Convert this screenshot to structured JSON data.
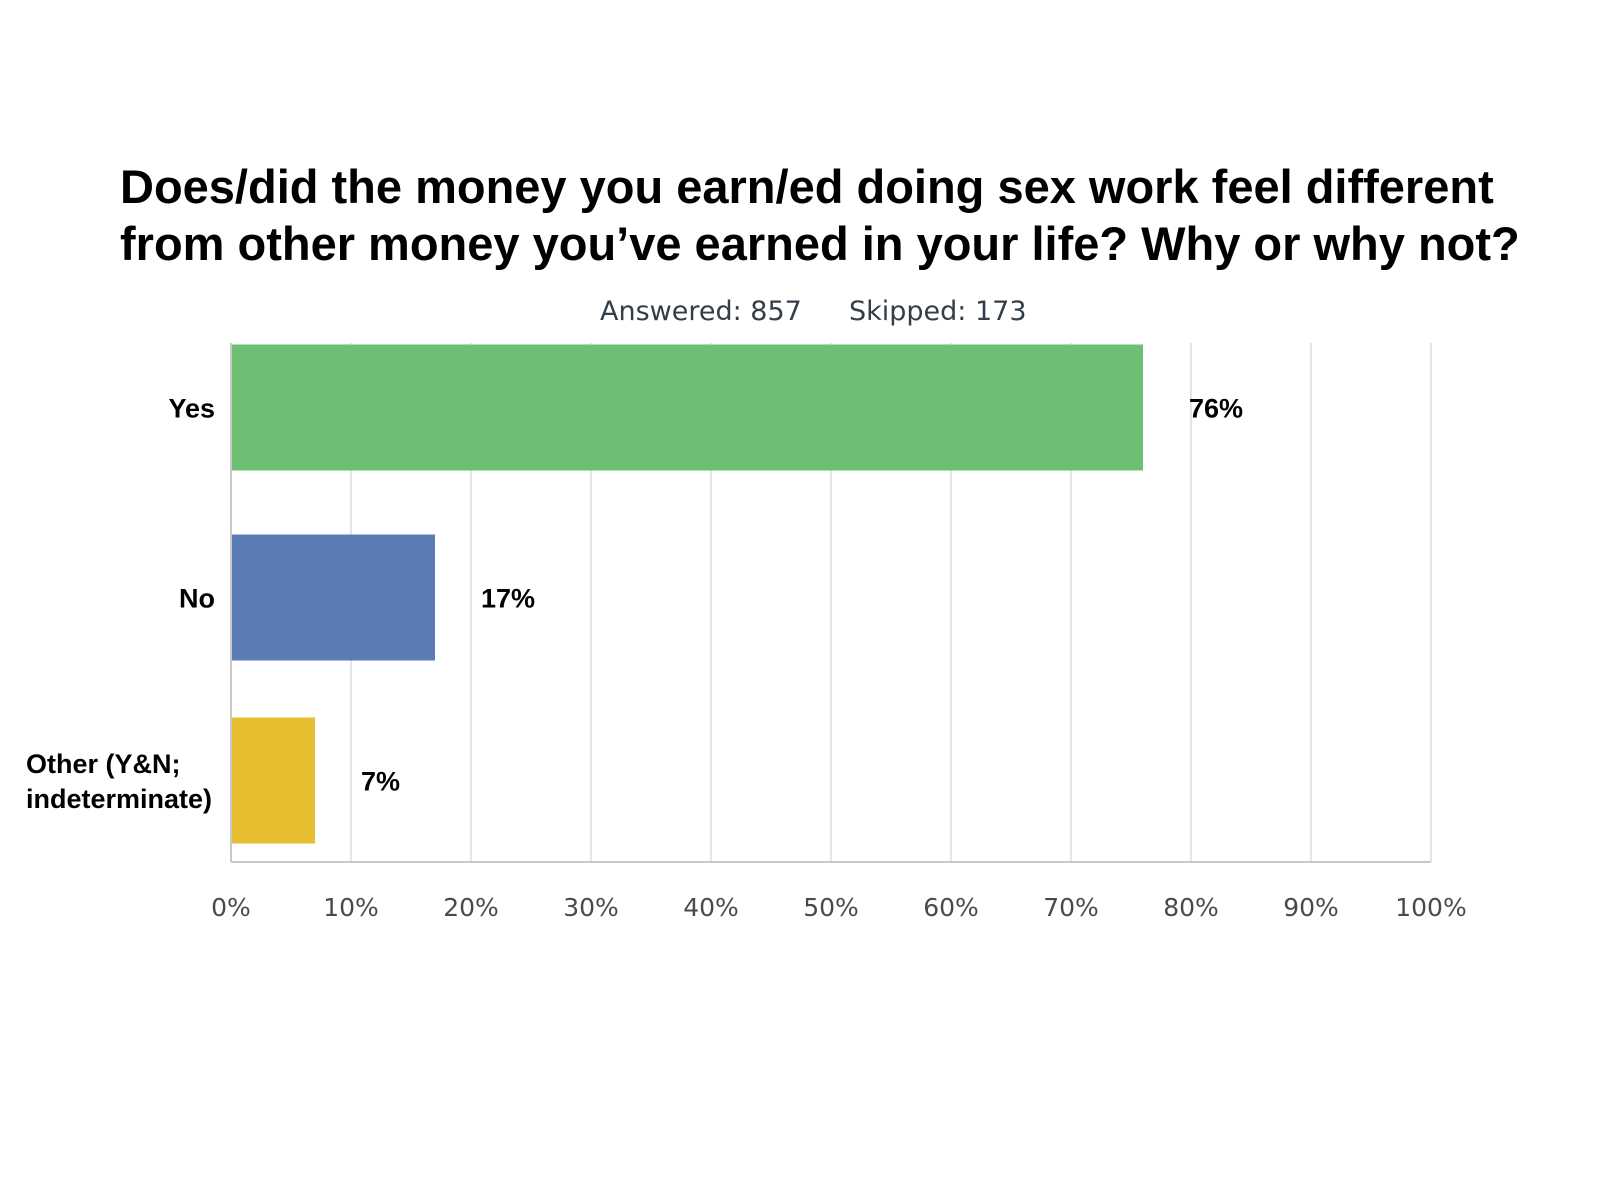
{
  "header": {
    "title_lines": [
      "Does/did the money you earn/ed doing sex work feel different",
      "from other money you’ve earned in your life? Why or why not?"
    ],
    "answered": "Answered: 857",
    "skipped": "Skipped: 173"
  },
  "chart_data": {
    "type": "bar",
    "orientation": "horizontal",
    "title": "Does/did the money you earn/ed doing sex work feel different from other money you’ve earned in your life? Why or why not?",
    "categories": [
      [
        "Yes"
      ],
      [
        "No"
      ],
      [
        "Other (Y&N;",
        "indeterminate)"
      ]
    ],
    "values": [
      76,
      17,
      7
    ],
    "value_labels": [
      "76%",
      "17%",
      "7%"
    ],
    "colors": [
      "#6cbf73",
      "#5b7db6",
      "#e7be2f"
    ],
    "xlim": [
      0,
      100
    ],
    "x_ticks": [
      "0%",
      "10%",
      "20%",
      "30%",
      "40%",
      "50%",
      "60%",
      "70%",
      "80%",
      "90%",
      "100%"
    ],
    "xlabel": "",
    "ylabel": "",
    "grid": true,
    "legend": "none"
  }
}
